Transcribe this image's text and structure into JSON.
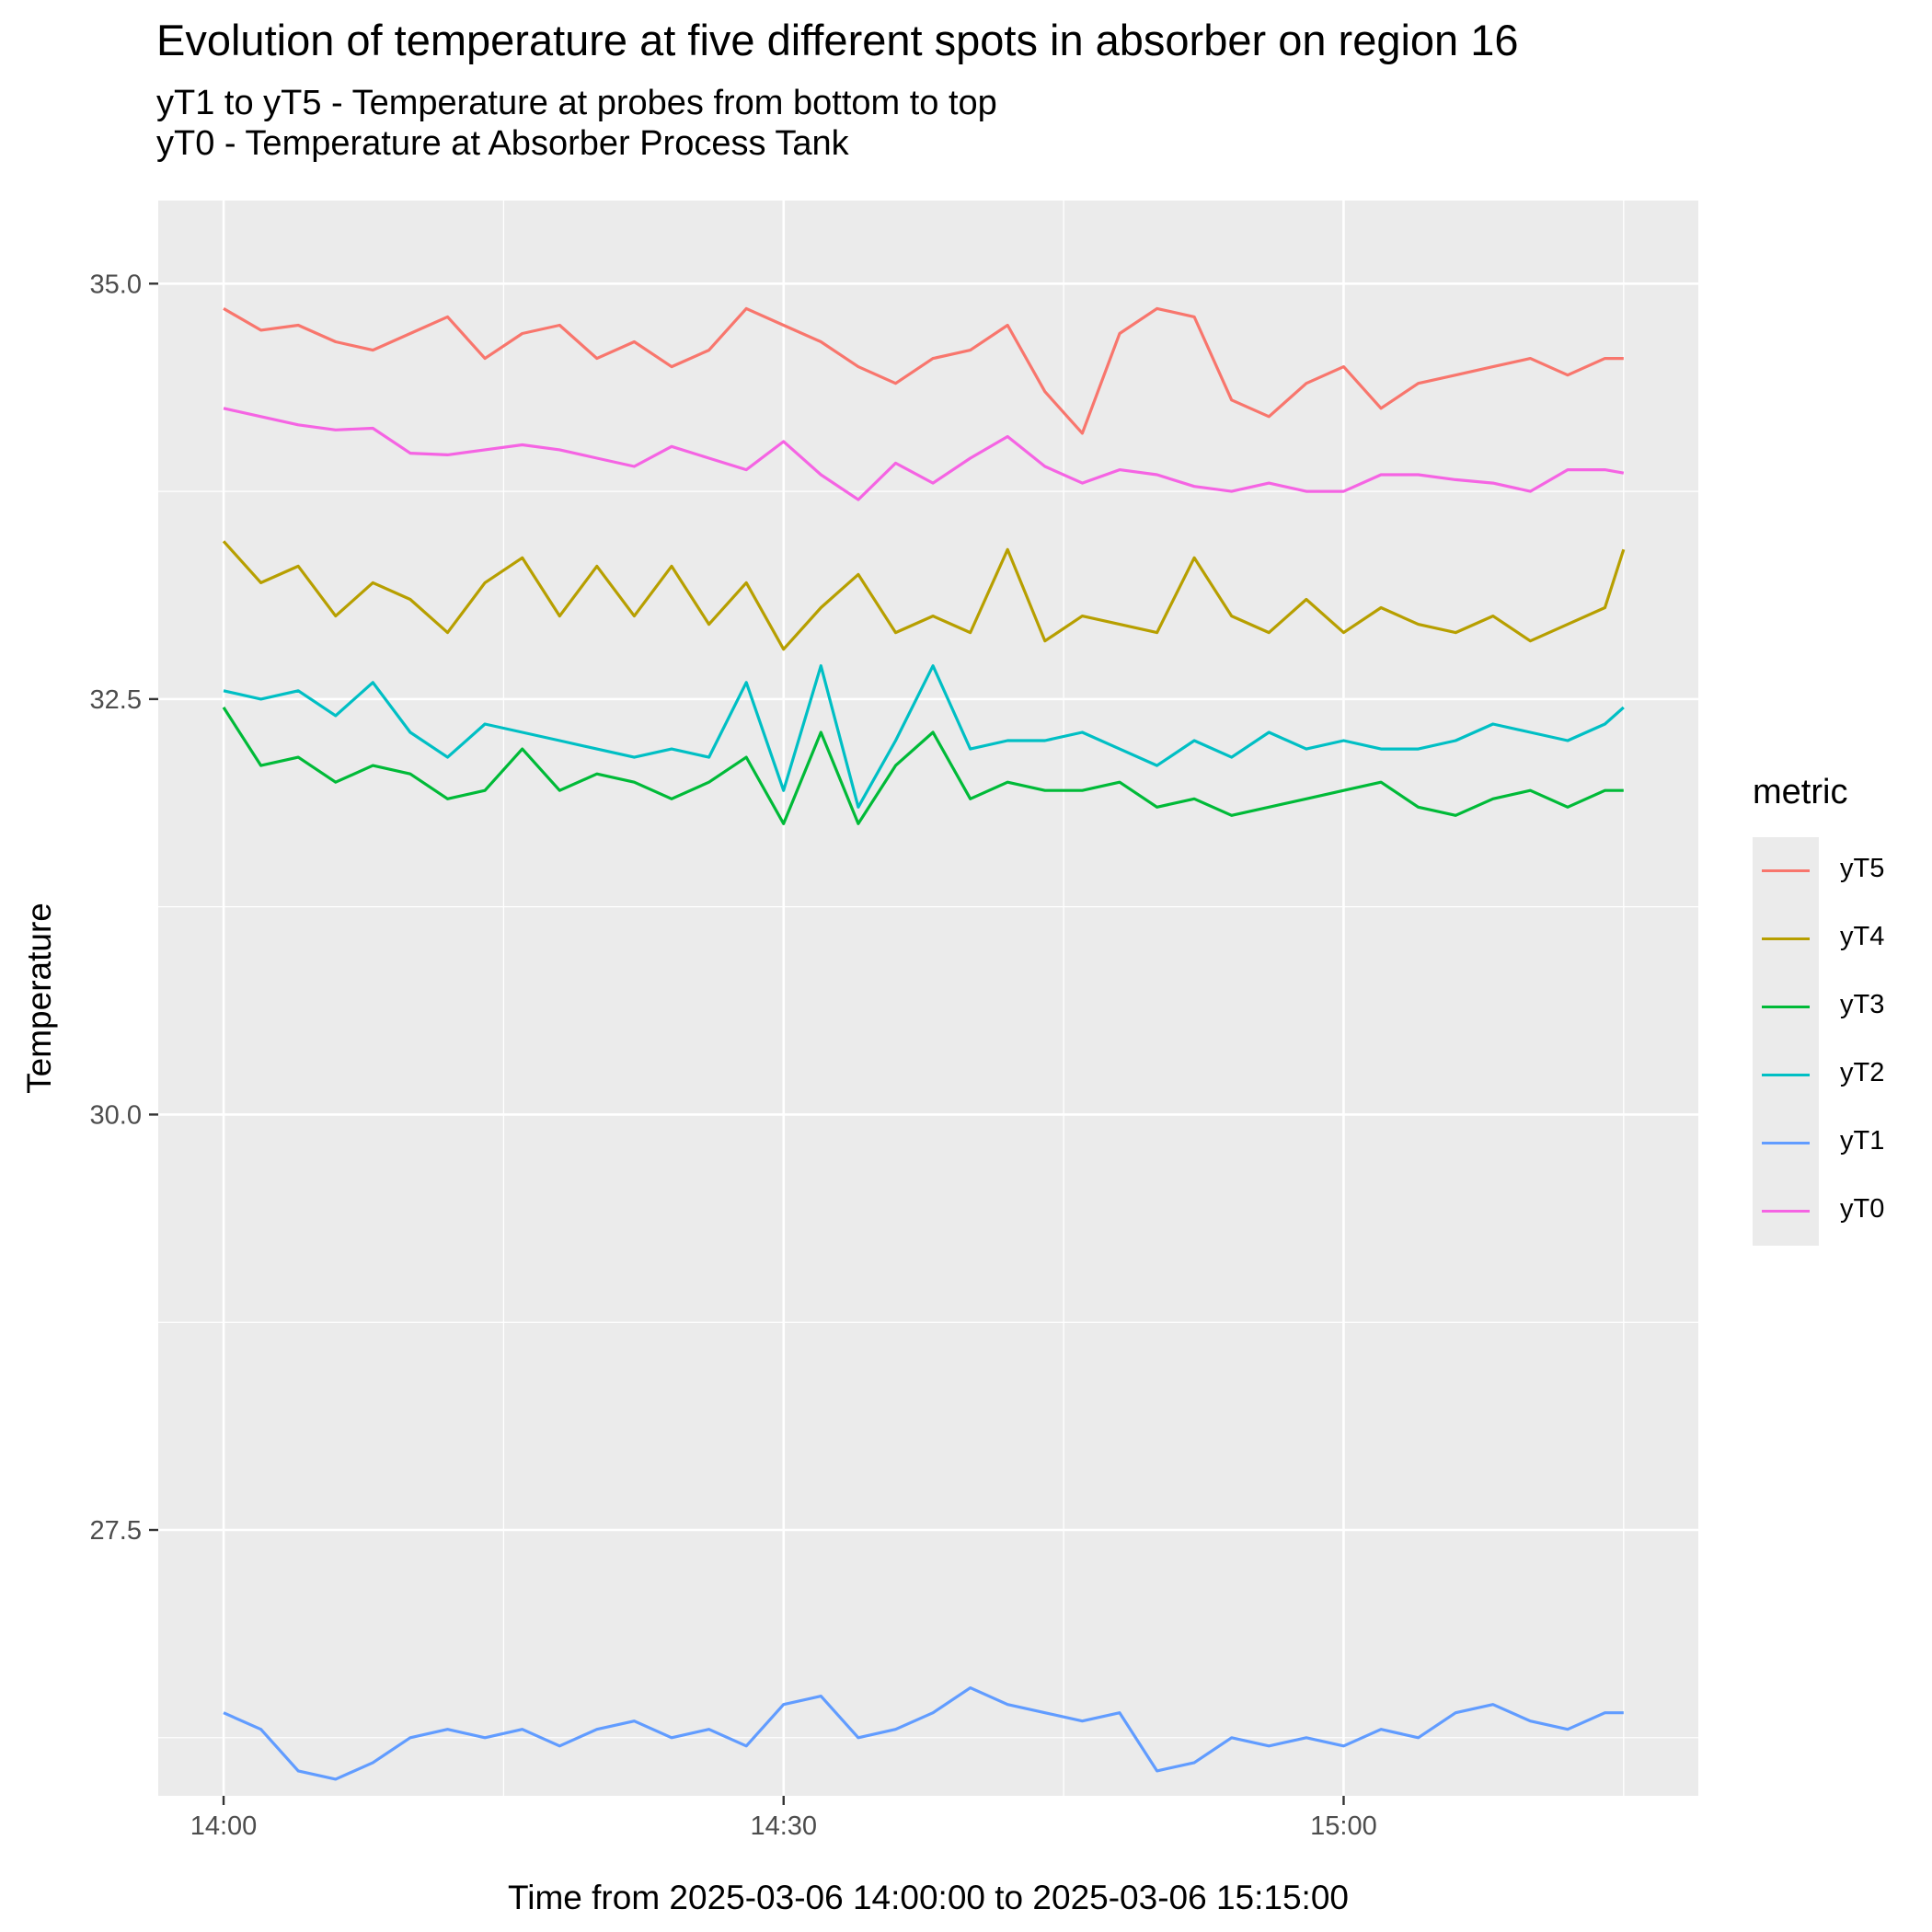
{
  "chart_data": {
    "type": "line",
    "title": "Evolution of temperature at five different spots in absorber on region 16",
    "subtitle": [
      "yT1 to yT5 - Temperature at probes from bottom to top",
      "yT0 - Temperature at Absorber Process Tank"
    ],
    "xlabel": "Time from 2025-03-06 14:00:00 to 2025-03-06 15:15:00",
    "ylabel": "Temperature",
    "legend_title": "metric",
    "legend_position": "right",
    "grid": true,
    "x_unit": "minutes after 14:00",
    "xlim": [
      -3.5,
      79
    ],
    "ylim": [
      25.9,
      35.5
    ],
    "x_ticks": [
      {
        "value": 0,
        "label": "14:00"
      },
      {
        "value": 30,
        "label": "14:30"
      },
      {
        "value": 60,
        "label": "15:00"
      }
    ],
    "y_ticks": [
      {
        "value": 27.5,
        "label": "27.5"
      },
      {
        "value": 30.0,
        "label": "30.0"
      },
      {
        "value": 32.5,
        "label": "32.5"
      },
      {
        "value": 35.0,
        "label": "35.0"
      }
    ],
    "x": [
      0,
      2,
      4,
      6,
      8,
      10,
      12,
      14,
      16,
      18,
      20,
      22,
      24,
      26,
      28,
      30,
      32,
      34,
      36,
      38,
      40,
      42,
      44,
      46,
      48,
      50,
      52,
      54,
      56,
      58,
      60,
      62,
      64,
      66,
      68,
      70,
      72,
      74,
      75
    ],
    "series": [
      {
        "name": "yT5",
        "color": "#f8766d",
        "values": [
          34.85,
          34.72,
          34.75,
          34.65,
          34.6,
          34.7,
          34.8,
          34.55,
          34.7,
          34.75,
          34.55,
          34.65,
          34.5,
          34.6,
          34.85,
          34.75,
          34.65,
          34.5,
          34.4,
          34.55,
          34.6,
          34.75,
          34.35,
          34.1,
          34.7,
          34.85,
          34.8,
          34.3,
          34.2,
          34.4,
          34.5,
          34.25,
          34.4,
          34.45,
          34.5,
          34.55,
          34.45,
          34.55,
          34.55
        ]
      },
      {
        "name": "yT4",
        "color": "#b79f00",
        "values": [
          33.45,
          33.2,
          33.3,
          33.0,
          33.2,
          33.1,
          32.9,
          33.2,
          33.35,
          33.0,
          33.3,
          33.0,
          33.3,
          32.95,
          33.2,
          32.8,
          33.05,
          33.25,
          32.9,
          33.0,
          32.9,
          33.4,
          32.85,
          33.0,
          32.95,
          32.9,
          33.35,
          33.0,
          32.9,
          33.1,
          32.9,
          33.05,
          32.95,
          32.9,
          33.0,
          32.85,
          32.95,
          33.05,
          33.4
        ]
      },
      {
        "name": "yT3",
        "color": "#00ba38",
        "values": [
          32.45,
          32.1,
          32.15,
          32.0,
          32.1,
          32.05,
          31.9,
          31.95,
          32.2,
          31.95,
          32.05,
          32.0,
          31.9,
          32.0,
          32.15,
          31.75,
          32.3,
          31.75,
          32.1,
          32.3,
          31.9,
          32.0,
          31.95,
          31.95,
          32.0,
          31.85,
          31.9,
          31.8,
          31.85,
          31.9,
          31.95,
          32.0,
          31.85,
          31.8,
          31.9,
          31.95,
          31.85,
          31.95,
          31.95
        ]
      },
      {
        "name": "yT2",
        "color": "#00bfc4",
        "values": [
          32.55,
          32.5,
          32.55,
          32.4,
          32.6,
          32.3,
          32.15,
          32.35,
          32.3,
          32.25,
          32.2,
          32.15,
          32.2,
          32.15,
          32.6,
          31.95,
          32.7,
          31.85,
          32.25,
          32.7,
          32.2,
          32.25,
          32.25,
          32.3,
          32.2,
          32.1,
          32.25,
          32.15,
          32.3,
          32.2,
          32.25,
          32.2,
          32.2,
          32.25,
          32.35,
          32.3,
          32.25,
          32.35,
          32.45
        ]
      },
      {
        "name": "yT1",
        "color": "#619cff",
        "values": [
          26.4,
          26.3,
          26.05,
          26.0,
          26.1,
          26.25,
          26.3,
          26.25,
          26.3,
          26.2,
          26.3,
          26.35,
          26.25,
          26.3,
          26.2,
          26.45,
          26.5,
          26.25,
          26.3,
          26.4,
          26.55,
          26.45,
          26.4,
          26.35,
          26.4,
          26.05,
          26.1,
          26.25,
          26.2,
          26.25,
          26.2,
          26.3,
          26.25,
          26.4,
          26.45,
          26.35,
          26.3,
          26.4,
          26.4
        ]
      },
      {
        "name": "yT0",
        "color": "#f564e3",
        "values": [
          34.25,
          34.2,
          34.15,
          34.12,
          34.13,
          33.98,
          33.97,
          34.0,
          34.03,
          34.0,
          33.95,
          33.9,
          34.02,
          33.95,
          33.88,
          34.05,
          33.85,
          33.7,
          33.92,
          33.8,
          33.95,
          34.08,
          33.9,
          33.8,
          33.88,
          33.85,
          33.78,
          33.75,
          33.8,
          33.75,
          33.75,
          33.85,
          33.85,
          33.82,
          33.8,
          33.75,
          33.88,
          33.88,
          33.86
        ]
      }
    ]
  }
}
